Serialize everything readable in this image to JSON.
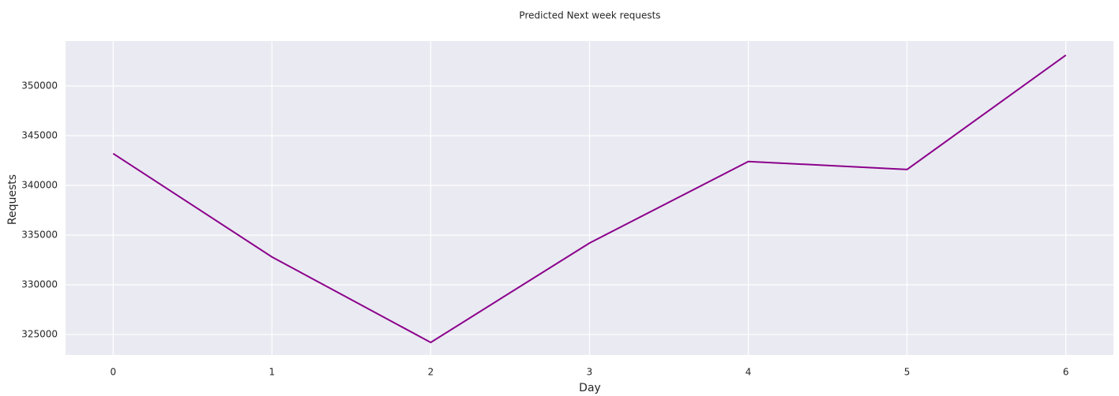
{
  "chart_data": {
    "type": "line",
    "title": "Predicted Next week requests",
    "x_label": "Day",
    "y_label": "Requests",
    "x": [
      0,
      1,
      2,
      3,
      4,
      5,
      6
    ],
    "series": [
      {
        "color": "#8b008b",
        "values": [
          343200,
          332800,
          324200,
          334200,
          342400,
          341600,
          353100
        ]
      }
    ],
    "xlim": [
      -0.3,
      6.3
    ],
    "xticks": [
      0,
      1,
      2,
      3,
      4,
      5,
      6
    ],
    "ylim": [
      322940,
      354520
    ],
    "yticks": [
      325000,
      330000,
      335000,
      340000,
      345000,
      350000
    ],
    "grid": true,
    "background": "#eaeaf2"
  }
}
